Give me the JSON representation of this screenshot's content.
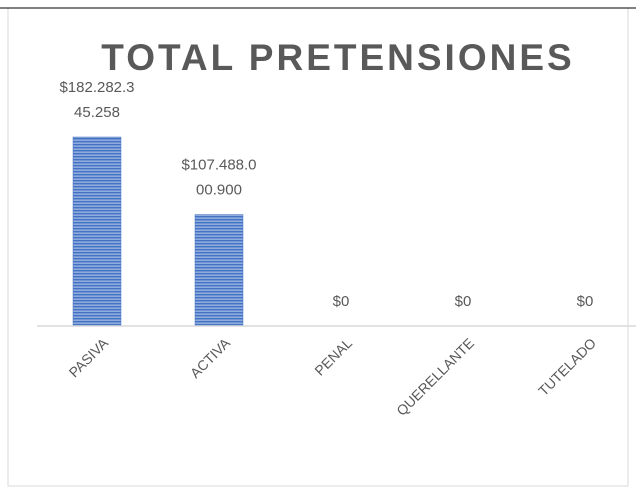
{
  "chart_data": {
    "type": "bar",
    "title": "TOTAL PRETENSIONES",
    "categories": [
      "PASIVA",
      "ACTIVA",
      "PENAL",
      "QUERELLANTE",
      "TUTELADO"
    ],
    "values": [
      182282345258,
      107488000900,
      0,
      0,
      0
    ],
    "value_labels": [
      "$182.282.345.258",
      "$107.488.000.900",
      "$0",
      "$0",
      "$0"
    ],
    "color": "#4472c4"
  }
}
